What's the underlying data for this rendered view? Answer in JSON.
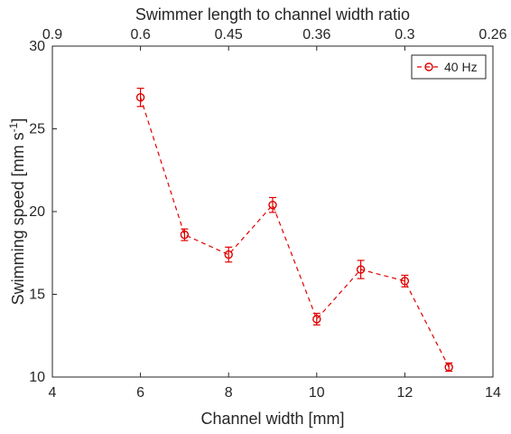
{
  "chart_data": {
    "type": "line",
    "xlabel": "Channel width [mm]",
    "ylabel": "Swimming speed [mm s",
    "ylabel_sup": "-1",
    "ylabel_end": "]",
    "top_xlabel": "Swimmer length to channel width ratio",
    "xlim": [
      4,
      14
    ],
    "ylim": [
      10,
      30
    ],
    "x_ticks": [
      4,
      6,
      8,
      10,
      12,
      14
    ],
    "y_ticks": [
      10,
      15,
      20,
      25,
      30
    ],
    "top_ticks": [
      {
        "label": "0.9",
        "at_x": 4
      },
      {
        "label": "0.6",
        "at_x": 6
      },
      {
        "label": "0.45",
        "at_x": 8
      },
      {
        "label": "0.36",
        "at_x": 10
      },
      {
        "label": "0.3",
        "at_x": 12
      },
      {
        "label": "0.26",
        "at_x": 14
      }
    ],
    "grid": false,
    "legend_position": "top-right",
    "color": "#e00000",
    "series": [
      {
        "name": "40 Hz",
        "x": [
          6,
          7,
          8,
          9,
          10,
          11,
          12,
          13
        ],
        "y": [
          26.9,
          18.6,
          17.4,
          20.4,
          13.5,
          16.5,
          15.8,
          10.6
        ],
        "err": [
          0.55,
          0.35,
          0.45,
          0.45,
          0.35,
          0.55,
          0.35,
          0.25
        ]
      }
    ]
  }
}
